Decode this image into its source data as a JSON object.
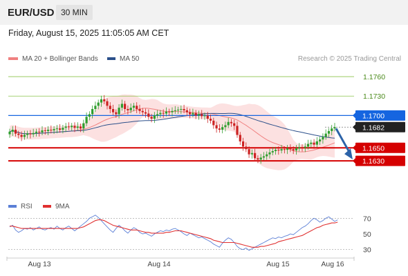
{
  "header": {
    "symbol": "EUR/USD",
    "interval": "30 MIN"
  },
  "datetime": "Friday, August 15, 2025 11:05:05 AM CET",
  "legend": {
    "items": [
      {
        "label": "MA 20 + Bollinger Bands",
        "color": "#f08080"
      },
      {
        "label": "MA 50",
        "color": "#2b4f8a"
      }
    ],
    "rsi_items": [
      {
        "label": "RSI",
        "color": "#5b7fd6"
      },
      {
        "label": "9MA",
        "color": "#e03030"
      }
    ]
  },
  "copyright": "Research © 2025 Trading Central",
  "colors": {
    "up": "#2e9e2e",
    "down": "#cc2222",
    "resistance": "#1565e0",
    "support": "#d50000",
    "target": "#8bc34a",
    "bb_fill": "#fbdcdc",
    "ma20": "#f08080",
    "ma50": "#2b4f8a",
    "arrow": "#2c63a8",
    "current": "#222222"
  },
  "chart_data": [
    {
      "type": "candlestick",
      "x_labels": [
        "Aug 13",
        "Aug 14",
        "Aug 15",
        "Aug 16"
      ],
      "ylim": [
        1.158,
        1.1775
      ],
      "levels": [
        {
          "value": 1.176,
          "label": "1.1760",
          "kind": "target"
        },
        {
          "value": 1.173,
          "label": "1.1730",
          "kind": "target"
        },
        {
          "value": 1.17,
          "label": "1.1700",
          "kind": "resistance"
        },
        {
          "value": 1.1682,
          "label": "1.1682",
          "kind": "current"
        },
        {
          "value": 1.165,
          "label": "1.1650",
          "kind": "support"
        },
        {
          "value": 1.163,
          "label": "1.1630",
          "kind": "support"
        }
      ],
      "close": [
        1.1675,
        1.1678,
        1.1672,
        1.167,
        1.1667,
        1.167,
        1.1672,
        1.1671,
        1.1673,
        1.1675,
        1.1674,
        1.1677,
        1.1676,
        1.1678,
        1.1677,
        1.1679,
        1.168,
        1.1678,
        1.1681,
        1.1683,
        1.1682,
        1.1684,
        1.1681,
        1.1683,
        1.168,
        1.1688,
        1.1698,
        1.1702,
        1.171,
        1.1715,
        1.172,
        1.1725,
        1.1722,
        1.1715,
        1.171,
        1.1705,
        1.1702,
        1.1712,
        1.1718,
        1.171,
        1.1708,
        1.1712,
        1.1715,
        1.171,
        1.1707,
        1.1705,
        1.1703,
        1.1698,
        1.1695,
        1.17,
        1.1702,
        1.1704,
        1.1703,
        1.1706,
        1.1705,
        1.1707,
        1.1708,
        1.1709,
        1.171,
        1.1708,
        1.1705,
        1.1702,
        1.1704,
        1.17,
        1.1702,
        1.1699,
        1.17,
        1.1695,
        1.1692,
        1.1685,
        1.168,
        1.1678,
        1.1682,
        1.1685,
        1.169,
        1.1688,
        1.1684,
        1.167,
        1.166,
        1.1652,
        1.1648,
        1.164,
        1.1642,
        1.1634,
        1.1632,
        1.1635,
        1.1637,
        1.164,
        1.1643,
        1.1645,
        1.1647,
        1.1646,
        1.1648,
        1.1647,
        1.1649,
        1.1648,
        1.1646,
        1.1649,
        1.1651,
        1.165,
        1.1652,
        1.1656,
        1.1658,
        1.1655,
        1.166,
        1.1663,
        1.1667,
        1.1672,
        1.1676,
        1.168,
        1.1682
      ],
      "series": [
        {
          "name": "MA 20 + Bollinger Bands"
        },
        {
          "name": "MA 50"
        }
      ]
    },
    {
      "type": "line",
      "x_labels": [
        "Aug 13",
        "Aug 14",
        "Aug 15",
        "Aug 16"
      ],
      "ylim": [
        20,
        80
      ],
      "ticks": [
        70,
        50,
        30
      ],
      "reference_lines": [
        70,
        30
      ],
      "series": [
        {
          "name": "RSI",
          "values": [
            59,
            61,
            55,
            52,
            54,
            57,
            56,
            58,
            55,
            57,
            59,
            56,
            55,
            57,
            58,
            56,
            60,
            57,
            55,
            58,
            60,
            57,
            54,
            57,
            60,
            63,
            66,
            70,
            72,
            74,
            71,
            67,
            63,
            59,
            55,
            52,
            57,
            61,
            58,
            54,
            51,
            55,
            58,
            56,
            52,
            50,
            51,
            49,
            47,
            50,
            52,
            54,
            53,
            55,
            54,
            56,
            57,
            55,
            53,
            50,
            48,
            51,
            49,
            47,
            45,
            46,
            44,
            42,
            40,
            37,
            35,
            33,
            38,
            42,
            45,
            43,
            39,
            34,
            31,
            30,
            32,
            29,
            31,
            33,
            35,
            37,
            39,
            41,
            43,
            45,
            44,
            46,
            45,
            47,
            48,
            50,
            49,
            52,
            55,
            58,
            60,
            63,
            67,
            70,
            68,
            65,
            67,
            70,
            72,
            69,
            66,
            68
          ]
        },
        {
          "name": "9MA",
          "values": [
            60,
            60,
            59,
            58,
            57,
            57,
            57,
            57,
            57,
            57,
            57,
            57,
            57,
            57,
            57,
            57,
            57,
            57,
            57,
            57,
            57,
            57,
            57,
            57,
            58,
            59,
            61,
            63,
            65,
            67,
            68,
            68,
            67,
            65,
            63,
            61,
            60,
            59,
            58,
            57,
            56,
            55,
            55,
            55,
            54,
            53,
            52,
            52,
            51,
            51,
            51,
            51,
            51,
            52,
            52,
            53,
            54,
            54,
            54,
            53,
            52,
            51,
            50,
            49,
            48,
            47,
            46,
            45,
            44,
            42,
            41,
            40,
            39,
            39,
            39,
            39,
            39,
            38,
            37,
            36,
            35,
            34,
            33,
            33,
            33,
            34,
            34,
            35,
            36,
            37,
            38,
            40,
            41,
            42,
            43,
            44,
            45,
            46,
            47,
            48,
            50,
            52,
            54,
            56,
            58,
            59,
            61,
            62,
            63,
            64,
            64,
            65
          ]
        }
      ]
    }
  ]
}
